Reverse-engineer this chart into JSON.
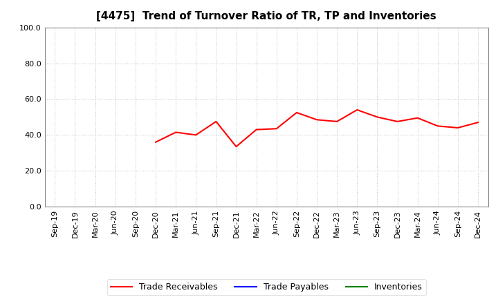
{
  "title": "[4475]  Trend of Turnover Ratio of TR, TP and Inventories",
  "xlabels": [
    "Sep-19",
    "Dec-19",
    "Mar-20",
    "Jun-20",
    "Sep-20",
    "Dec-20",
    "Mar-21",
    "Jun-21",
    "Sep-21",
    "Dec-21",
    "Mar-22",
    "Jun-22",
    "Sep-22",
    "Dec-22",
    "Mar-23",
    "Jun-23",
    "Sep-23",
    "Dec-23",
    "Mar-24",
    "Jun-24",
    "Sep-24",
    "Dec-24"
  ],
  "tr_x_indices": [
    5,
    6,
    7,
    8,
    9,
    10,
    11,
    12,
    13,
    14,
    15,
    16,
    17,
    18,
    19,
    20,
    21
  ],
  "tr_values": [
    36.0,
    41.5,
    40.0,
    47.5,
    33.5,
    43.0,
    43.5,
    52.5,
    48.5,
    47.5,
    54.0,
    50.0,
    47.5,
    49.5,
    45.0,
    44.0,
    47.0
  ],
  "ylim": [
    0.0,
    100.0
  ],
  "yticks": [
    0.0,
    20.0,
    40.0,
    60.0,
    80.0,
    100.0
  ],
  "line_color_tr": "#FF0000",
  "line_color_tp": "#0000FF",
  "line_color_inv": "#008000",
  "legend_labels": [
    "Trade Receivables",
    "Trade Payables",
    "Inventories"
  ],
  "background_color": "#FFFFFF",
  "grid_color": "#BBBBBB",
  "title_fontsize": 11,
  "tick_fontsize": 8,
  "legend_fontsize": 9
}
